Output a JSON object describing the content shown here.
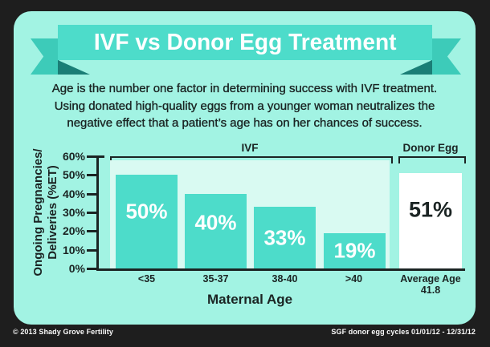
{
  "banner": {
    "title": "IVF vs Donor Egg Treatment"
  },
  "intro": {
    "lines": [
      "Age is the number one factor in determining success with IVF treatment.",
      "Using donated high-quality eggs from a younger woman neutralizes the",
      "negative effect that a patient’s age has on her chances of success."
    ]
  },
  "chart_data": {
    "type": "bar",
    "ylabel": "Ongoing Pregnancies/\nDeliveries (%ET)",
    "xlabel": "Maternal Age",
    "ylim": [
      0,
      60
    ],
    "ytick_step": 10,
    "yticks": [
      "60%",
      "50%",
      "40%",
      "30%",
      "20%",
      "10%",
      "0%"
    ],
    "grid": false,
    "legend_position": "none",
    "groups": [
      {
        "label": "IVF",
        "bars": [
          {
            "category": "<35",
            "value": 50,
            "label": "50%"
          },
          {
            "category": "35-37",
            "value": 40,
            "label": "40%"
          },
          {
            "category": "38-40",
            "value": 33,
            "label": "33%"
          },
          {
            "category": ">40",
            "value": 19,
            "label": "19%"
          }
        ]
      },
      {
        "label": "Donor Egg",
        "bars": [
          {
            "category": "Average Age\n41.8",
            "value": 51,
            "label": "51%"
          }
        ]
      }
    ]
  },
  "footer": {
    "left": "© 2013 Shady Grove Fertility",
    "right": "SGF donor egg cycles 01/01/12 - 12/31/12"
  },
  "colors": {
    "background": "#1e1e1e",
    "card": "#a2f3e3",
    "ribbon": "#4ddcca",
    "ribbon_tail": "#3dcbb9",
    "ribbon_fold": "#1a7e76",
    "bar_teal": "#4ddcca",
    "donor_bar": "#ffffff",
    "plot_background": "#d9faf2",
    "text_dark": "#1b2423",
    "text_white": "#ffffff"
  }
}
